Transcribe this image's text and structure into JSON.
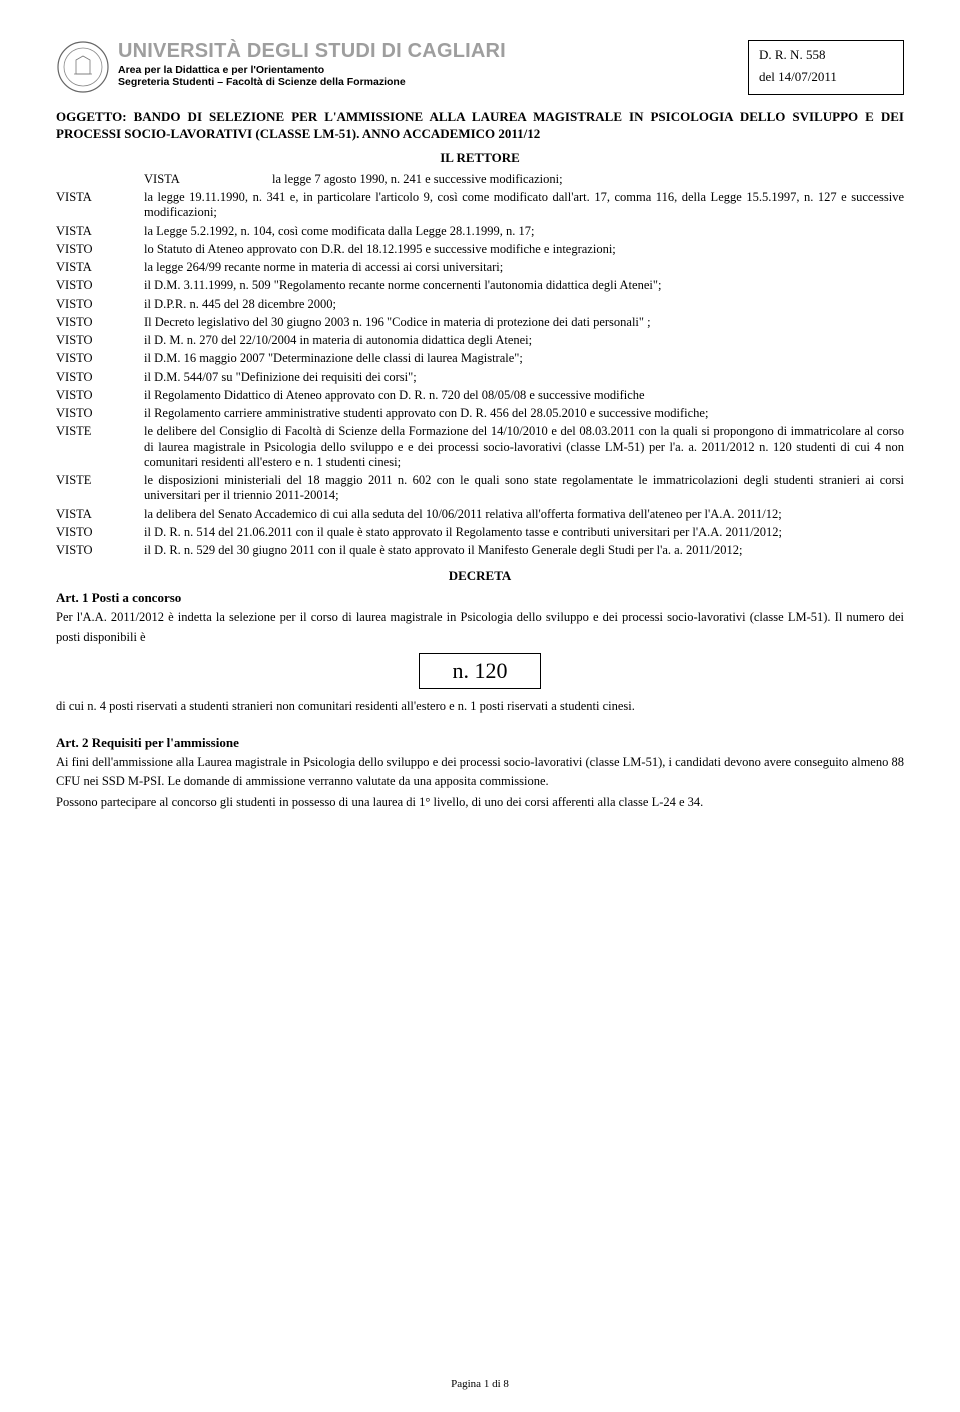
{
  "header": {
    "uni": "UNIVERSITÀ DEGLI STUDI DI CAGLIARI",
    "sub1": "Area per la Didattica e per l'Orientamento",
    "sub2": "Segreteria Studenti – Facoltà di Scienze della Formazione",
    "dr1": "D. R. N. 558",
    "dr2": "del 14/07/2011"
  },
  "oggetto": "OGGETTO: BANDO DI SELEZIONE PER L'AMMISSIONE ALLA LAUREA MAGISTRALE IN PSICOLOGIA DELLO SVILUPPO E DEI PROCESSI SOCIO-LAVORATIVI (CLASSE LM-51). ANNO ACCADEMICO 2011/12",
  "rettore": "IL RETTORE",
  "cite_first": {
    "key": "VISTA",
    "txt": "la legge 7 agosto 1990, n. 241 e successive modificazioni;"
  },
  "cites": [
    {
      "key": "VISTA",
      "txt": "la legge 19.11.1990, n. 341 e, in particolare l'articolo 9, così come modificato dall'art. 17, comma 116, della Legge 15.5.1997, n. 127 e successive modificazioni;"
    },
    {
      "key": "VISTA",
      "txt": "la Legge 5.2.1992, n. 104, così come modificata dalla Legge 28.1.1999, n. 17;"
    },
    {
      "key": "VISTO",
      "txt": "lo Statuto di Ateneo approvato con D.R. del 18.12.1995 e successive modifiche e integrazioni;"
    },
    {
      "key": "VISTA",
      "txt": "la legge 264/99 recante norme in materia di accessi ai corsi universitari;"
    },
    {
      "key": "VISTO",
      "txt": "il D.M. 3.11.1999, n. 509 \"Regolamento recante norme concernenti l'autonomia didattica degli Atenei\";"
    },
    {
      "key": "VISTO",
      "txt": "il D.P.R. n. 445 del 28 dicembre 2000;"
    },
    {
      "key": "VISTO",
      "txt": "Il Decreto legislativo del 30 giugno 2003 n. 196 \"Codice in materia di protezione dei dati personali\" ;"
    },
    {
      "key": "VISTO",
      "txt": "il D. M. n. 270 del 22/10/2004 in materia di autonomia didattica degli Atenei;"
    },
    {
      "key": "VISTO",
      "txt": "il D.M. 16 maggio 2007 \"Determinazione delle classi di laurea Magistrale\";"
    },
    {
      "key": "VISTO",
      "txt": "il D.M. 544/07 su \"Definizione dei requisiti dei corsi\";"
    },
    {
      "key": "VISTO",
      "txt": "il Regolamento Didattico di Ateneo approvato con D. R. n. 720 del 08/05/08 e successive modifiche"
    },
    {
      "key": "VISTO",
      "txt": "il Regolamento carriere amministrative studenti approvato con D. R. 456 del 28.05.2010 e successive modifiche;"
    },
    {
      "key": "VISTE",
      "txt": "le delibere del Consiglio di Facoltà di Scienze della Formazione del 14/10/2010 e del 08.03.2011 con la quali si propongono di immatricolare al corso di laurea magistrale in Psicologia dello sviluppo e e dei processi socio-lavorativi (classe LM-51) per l'a. a. 2011/2012 n. 120 studenti di cui 4 non comunitari residenti all'estero e n. 1 studenti cinesi;"
    },
    {
      "key": "VISTE",
      "txt": "le disposizioni ministeriali del 18 maggio 2011 n. 602 con le quali sono state regolamentate le immatricolazioni degli studenti stranieri ai corsi universitari per il triennio 2011-20014;"
    },
    {
      "key": "VISTA",
      "txt": "la delibera del Senato Accademico di cui alla seduta del 10/06/2011 relativa all'offerta formativa dell'ateneo per l'A.A. 2011/12;"
    },
    {
      "key": "VISTO",
      "txt": "il D. R. n. 514 del 21.06.2011 con il quale è stato approvato il Regolamento tasse e contributi universitari per l'A.A. 2011/2012;"
    },
    {
      "key": "VISTO",
      "txt": "il D. R. n. 529  del 30 giugno 2011 con il quale è stato approvato il Manifesto Generale degli Studi per l'a. a. 2011/2012;"
    }
  ],
  "decreta": "DECRETA",
  "art1": "Art. 1 Posti a concorso",
  "p1": "Per l'A.A. 2011/2012  è indetta la selezione per il corso di laurea magistrale  in Psicologia dello sviluppo e dei processi socio-lavorativi (classe LM-51). Il numero dei posti disponibili è",
  "num": "n. 120",
  "p2": "di cui n. 4 posti riservati a studenti stranieri non comunitari residenti all'estero e n. 1 posti riservati a studenti cinesi.",
  "art2": "Art. 2 Requisiti per l'ammissione",
  "p3": "Ai fini dell'ammissione alla Laurea magistrale in Psicologia dello sviluppo e dei processi socio-lavorativi (classe LM-51), i candidati devono avere conseguito almeno 88 CFU nei SSD M-PSI. Le domande di ammissione verranno valutate da una apposita commissione.",
  "p4": "Possono partecipare al concorso gli studenti in possesso di una laurea di 1° livello, di uno dei corsi afferenti alla classe L-24 e 34.",
  "footer": "Pagina 1 di 8"
}
